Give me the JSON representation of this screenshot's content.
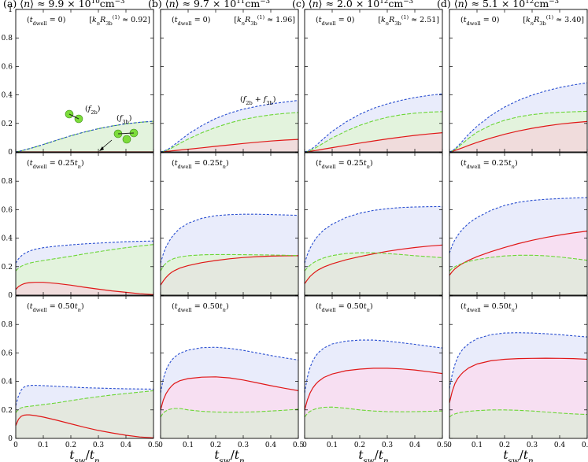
{
  "colors": {
    "blue": "#2a4fd0",
    "green": "#6cd636",
    "red": "#e01818",
    "fill_blue": "#e9ecfb",
    "fill_green": "#e3f3dd",
    "fill_red": "#f0dcdc",
    "fill_pink": "#f7dff2",
    "fill_grey": "#e4e8df",
    "molecule": "#7cdc3a"
  },
  "x_axis_label": {
    "main": "t",
    "sub1": "sw",
    "sep": "/",
    "main2": "t",
    "sub2": "n"
  },
  "x_tick_labels": [
    "0",
    "0.1",
    "0.2",
    "0.3",
    "0.4",
    "0.5"
  ],
  "y_tick_labels": [
    "0",
    "0.2",
    "0.4",
    "0.6",
    "0.8",
    "1"
  ],
  "columns": [
    {
      "tag": "(a)",
      "value": "9.9",
      "power": "10",
      "note_value": "0.92"
    },
    {
      "tag": "(b)",
      "value": "9.7",
      "power": "11",
      "note_value": "1.96"
    },
    {
      "tag": "(c)",
      "value": "2.0",
      "power": "12",
      "note_value": "2.51"
    },
    {
      "tag": "(d)",
      "value": "5.1",
      "power": "12",
      "note_value": "3.40"
    }
  ],
  "row_labels": [
    "0",
    "0.25",
    "0.50"
  ],
  "annotations": {
    "f2b": "f",
    "f2b_sub": "2b",
    "f3b": "f",
    "f3b_sub": "3b"
  },
  "chart_data": {
    "type": "area",
    "layout": "grid-3x4",
    "x": [
      0,
      0.01,
      0.02,
      0.03,
      0.04,
      0.05,
      0.07,
      0.1,
      0.15,
      0.2,
      0.25,
      0.3,
      0.35,
      0.4,
      0.45,
      0.5
    ],
    "xlim": [
      0,
      0.5
    ],
    "ylim": [
      0,
      1
    ],
    "xlabel": "t_sw/t_n",
    "panels": [
      [
        {
          "blue": [
            0,
            0.004,
            0.008,
            0.013,
            0.018,
            0.023,
            0.034,
            0.052,
            0.083,
            0.113,
            0.14,
            0.163,
            0.182,
            0.197,
            0.208,
            0.215
          ],
          "green": [
            0,
            0.004,
            0.008,
            0.013,
            0.018,
            0.023,
            0.034,
            0.052,
            0.083,
            0.113,
            0.14,
            0.163,
            0.182,
            0.197,
            0.208,
            0.215
          ],
          "red": [
            0,
            0,
            0,
            0,
            0,
            0,
            0,
            0,
            0,
            0,
            0,
            0,
            0,
            0,
            0,
            0
          ]
        },
        {
          "blue": [
            0,
            0.005,
            0.012,
            0.022,
            0.035,
            0.05,
            0.08,
            0.125,
            0.185,
            0.235,
            0.272,
            0.3,
            0.32,
            0.337,
            0.35,
            0.362
          ],
          "green": [
            0,
            0.004,
            0.01,
            0.018,
            0.027,
            0.038,
            0.06,
            0.09,
            0.135,
            0.172,
            0.203,
            0.228,
            0.246,
            0.26,
            0.27,
            0.277
          ],
          "red": [
            0,
            0.001,
            0.003,
            0.005,
            0.007,
            0.009,
            0.013,
            0.019,
            0.029,
            0.039,
            0.049,
            0.059,
            0.068,
            0.076,
            0.083,
            0.088
          ]
        },
        {
          "blue": [
            0,
            0.006,
            0.015,
            0.028,
            0.043,
            0.06,
            0.095,
            0.145,
            0.21,
            0.264,
            0.306,
            0.337,
            0.362,
            0.382,
            0.396,
            0.408
          ],
          "green": [
            0,
            0.004,
            0.01,
            0.019,
            0.029,
            0.04,
            0.064,
            0.098,
            0.146,
            0.186,
            0.218,
            0.243,
            0.261,
            0.272,
            0.279,
            0.283
          ],
          "red": [
            0,
            0.002,
            0.004,
            0.007,
            0.01,
            0.013,
            0.02,
            0.03,
            0.046,
            0.062,
            0.077,
            0.091,
            0.104,
            0.116,
            0.126,
            0.135
          ]
        },
        {
          "blue": [
            0,
            0.008,
            0.022,
            0.04,
            0.06,
            0.082,
            0.125,
            0.18,
            0.255,
            0.315,
            0.362,
            0.399,
            0.428,
            0.452,
            0.47,
            0.485
          ],
          "green": [
            0,
            0.007,
            0.018,
            0.032,
            0.048,
            0.064,
            0.096,
            0.138,
            0.188,
            0.222,
            0.246,
            0.262,
            0.272,
            0.278,
            0.282,
            0.285
          ],
          "red": [
            0,
            0.004,
            0.01,
            0.017,
            0.024,
            0.031,
            0.046,
            0.067,
            0.097,
            0.124,
            0.147,
            0.166,
            0.182,
            0.195,
            0.205,
            0.213
          ]
        }
      ],
      [
        {
          "blue": [
            0.225,
            0.255,
            0.275,
            0.29,
            0.3,
            0.31,
            0.322,
            0.333,
            0.345,
            0.353,
            0.36,
            0.365,
            0.37,
            0.375,
            0.378,
            0.38
          ],
          "green": [
            0.17,
            0.19,
            0.203,
            0.212,
            0.219,
            0.225,
            0.233,
            0.243,
            0.258,
            0.273,
            0.29,
            0.305,
            0.32,
            0.333,
            0.345,
            0.355
          ],
          "red": [
            0.04,
            0.06,
            0.072,
            0.08,
            0.085,
            0.088,
            0.09,
            0.09,
            0.082,
            0.07,
            0.055,
            0.042,
            0.03,
            0.02,
            0.01,
            0.004
          ]
        },
        {
          "blue": [
            0.225,
            0.29,
            0.34,
            0.375,
            0.405,
            0.43,
            0.468,
            0.505,
            0.54,
            0.558,
            0.565,
            0.568,
            0.568,
            0.566,
            0.563,
            0.56
          ],
          "green": [
            0.17,
            0.205,
            0.225,
            0.24,
            0.25,
            0.258,
            0.268,
            0.277,
            0.283,
            0.285,
            0.285,
            0.284,
            0.283,
            0.282,
            0.28,
            0.278
          ],
          "red": [
            0.07,
            0.1,
            0.125,
            0.145,
            0.16,
            0.172,
            0.19,
            0.208,
            0.228,
            0.243,
            0.255,
            0.264,
            0.27,
            0.274,
            0.276,
            0.277
          ]
        },
        {
          "blue": [
            0.225,
            0.285,
            0.33,
            0.365,
            0.395,
            0.42,
            0.458,
            0.498,
            0.545,
            0.575,
            0.595,
            0.607,
            0.615,
            0.619,
            0.621,
            0.622
          ],
          "green": [
            0.17,
            0.192,
            0.21,
            0.225,
            0.237,
            0.247,
            0.262,
            0.278,
            0.293,
            0.298,
            0.297,
            0.292,
            0.285,
            0.277,
            0.27,
            0.263
          ],
          "red": [
            0.08,
            0.108,
            0.132,
            0.15,
            0.165,
            0.178,
            0.198,
            0.22,
            0.248,
            0.27,
            0.29,
            0.308,
            0.322,
            0.334,
            0.344,
            0.352
          ]
        },
        {
          "blue": [
            0.295,
            0.35,
            0.39,
            0.42,
            0.445,
            0.468,
            0.505,
            0.545,
            0.595,
            0.63,
            0.652,
            0.665,
            0.673,
            0.678,
            0.682,
            0.685
          ],
          "green": [
            0.17,
            0.188,
            0.2,
            0.21,
            0.218,
            0.225,
            0.237,
            0.25,
            0.265,
            0.275,
            0.28,
            0.28,
            0.276,
            0.268,
            0.257,
            0.245
          ],
          "red": [
            0.14,
            0.165,
            0.185,
            0.2,
            0.213,
            0.225,
            0.245,
            0.27,
            0.305,
            0.335,
            0.362,
            0.385,
            0.405,
            0.422,
            0.437,
            0.45
          ]
        }
      ],
      [
        {
          "blue": [
            0.23,
            0.3,
            0.34,
            0.36,
            0.368,
            0.372,
            0.373,
            0.37,
            0.365,
            0.36,
            0.356,
            0.353,
            0.35,
            0.348,
            0.347,
            0.346
          ],
          "green": [
            0.18,
            0.205,
            0.215,
            0.22,
            0.223,
            0.225,
            0.23,
            0.237,
            0.25,
            0.265,
            0.28,
            0.293,
            0.305,
            0.315,
            0.325,
            0.335
          ],
          "red": [
            0.09,
            0.135,
            0.155,
            0.163,
            0.165,
            0.165,
            0.16,
            0.15,
            0.127,
            0.102,
            0.078,
            0.056,
            0.038,
            0.022,
            0.01,
            0.004
          ]
        },
        {
          "blue": [
            0.32,
            0.42,
            0.48,
            0.52,
            0.548,
            0.57,
            0.598,
            0.62,
            0.637,
            0.64,
            0.632,
            0.618,
            0.6,
            0.582,
            0.565,
            0.55
          ],
          "green": [
            0.15,
            0.18,
            0.193,
            0.202,
            0.207,
            0.21,
            0.21,
            0.2,
            0.19,
            0.185,
            0.183,
            0.184,
            0.187,
            0.192,
            0.198,
            0.205
          ],
          "red": [
            0.2,
            0.27,
            0.315,
            0.345,
            0.368,
            0.385,
            0.405,
            0.42,
            0.43,
            0.432,
            0.425,
            0.41,
            0.39,
            0.37,
            0.352,
            0.335
          ]
        },
        {
          "blue": [
            0.32,
            0.43,
            0.5,
            0.545,
            0.578,
            0.602,
            0.635,
            0.663,
            0.683,
            0.69,
            0.69,
            0.683,
            0.672,
            0.66,
            0.647,
            0.635
          ],
          "green": [
            0.15,
            0.175,
            0.19,
            0.2,
            0.207,
            0.212,
            0.218,
            0.22,
            0.212,
            0.2,
            0.192,
            0.188,
            0.187,
            0.188,
            0.19,
            0.192
          ],
          "red": [
            0.2,
            0.27,
            0.32,
            0.355,
            0.38,
            0.4,
            0.428,
            0.452,
            0.475,
            0.486,
            0.492,
            0.492,
            0.488,
            0.48,
            0.468,
            0.455
          ]
        },
        {
          "blue": [
            0.35,
            0.45,
            0.52,
            0.57,
            0.605,
            0.63,
            0.665,
            0.7,
            0.728,
            0.74,
            0.742,
            0.74,
            0.735,
            0.728,
            0.72,
            0.712
          ],
          "green": [
            0.15,
            0.165,
            0.172,
            0.178,
            0.182,
            0.185,
            0.19,
            0.195,
            0.2,
            0.2,
            0.197,
            0.192,
            0.185,
            0.178,
            0.172,
            0.168
          ],
          "red": [
            0.25,
            0.33,
            0.385,
            0.42,
            0.445,
            0.465,
            0.495,
            0.522,
            0.545,
            0.555,
            0.56,
            0.562,
            0.563,
            0.562,
            0.56,
            0.555
          ]
        }
      ]
    ],
    "fill_order": {
      "row0": "blue-green-red stacked: green region under green line, blue over",
      "note": "colors per region listed in colors"
    }
  }
}
